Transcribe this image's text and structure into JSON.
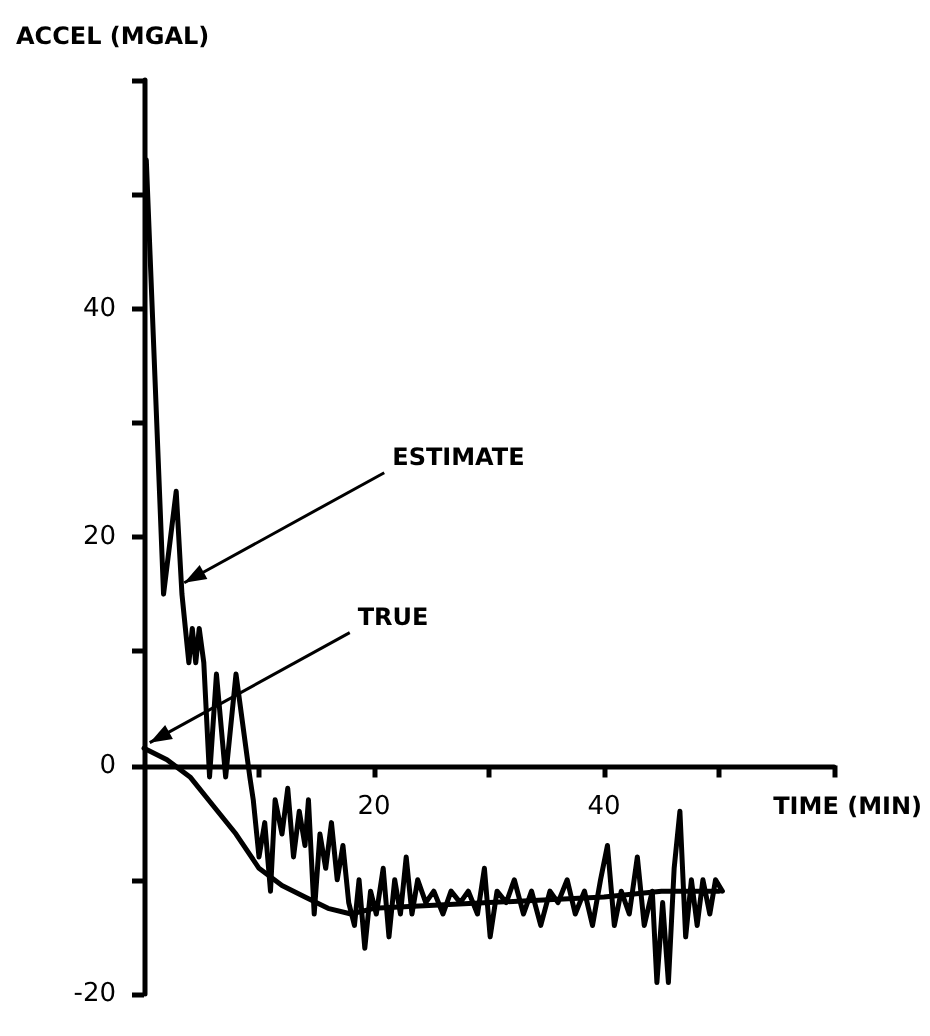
{
  "chart_data": {
    "type": "line",
    "xlabel": "TIME (MIN)",
    "ylabel": "ACCEL (MGAL)",
    "xlim": [
      0,
      60
    ],
    "xticks": [
      {
        "value": 10,
        "label": null
      },
      20,
      {
        "value": 30,
        "label": null
      },
      40,
      {
        "value": 50,
        "label": null
      },
      {
        "value": 60,
        "label": null
      }
    ],
    "ylim": [
      -20,
      60
    ],
    "yticks": [
      -20,
      {
        "value": -10,
        "label": null
      },
      0,
      {
        "value": 10,
        "label": null
      },
      20,
      {
        "value": 30,
        "label": null
      },
      40,
      {
        "value": 50,
        "label": null
      },
      {
        "value": 60,
        "label": null
      }
    ],
    "marker": "none",
    "line_style": "solid",
    "annotations": [
      {
        "text": "ESTIMATE",
        "x": 3.5,
        "y": 16
      },
      {
        "text": "TRUE",
        "x": 0.5,
        "y": 2
      }
    ],
    "series": [
      {
        "color": "#000000",
        "x": [
          0.2,
          1.7,
          2.8,
          3.3,
          3.6,
          3.9,
          4.2,
          4.5,
          4.8,
          5.2,
          5.7,
          6.3,
          7.1,
          8,
          9.2,
          9.5,
          10,
          10.5,
          11,
          11.4,
          12,
          12.5,
          13,
          13.5,
          14,
          14.3,
          14.8,
          15.3,
          15.8,
          16.3,
          16.8,
          17.3,
          17.8,
          18.3,
          18.7,
          19.2,
          19.7,
          20.2,
          20.8,
          21.3,
          21.8,
          22.3,
          22.8,
          23.3,
          23.8,
          24.5,
          25.2,
          26,
          26.7,
          27.5,
          28.2,
          29,
          29.6,
          30.1,
          30.7,
          31.5,
          32.2,
          33,
          33.7,
          34.5,
          35.3,
          36,
          36.8,
          37.5,
          38.3,
          39,
          39.7,
          40.3,
          40.9,
          41.5,
          42.2,
          42.9,
          43.5,
          44.2,
          44.6,
          45.1,
          45.6,
          46.1,
          46.6,
          47.1,
          47.6,
          48.1,
          48.6,
          49.2,
          49.7,
          50.3
        ],
        "values": [
          53,
          15,
          24,
          15,
          12,
          9,
          12,
          9,
          12,
          9,
          -1,
          8,
          -1,
          8,
          -1,
          -3,
          -8,
          -5,
          -11,
          -3,
          -6,
          -2,
          -8,
          -4,
          -7,
          -3,
          -13,
          -6,
          -9,
          -5,
          -10,
          -7,
          -12,
          -14,
          -10,
          -16,
          -11,
          -13,
          -9,
          -15,
          -10,
          -13,
          -8,
          -13,
          -10,
          -12,
          -11,
          -13,
          -11,
          -12,
          -11,
          -13,
          -9,
          -15,
          -11,
          -12,
          -10,
          -13,
          -11,
          -14,
          -11,
          -12,
          -10,
          -13,
          -11,
          -14,
          -10,
          -7,
          -14,
          -11,
          -13,
          -8,
          -14,
          -11,
          -19,
          -12,
          -19,
          -9,
          -4,
          -15,
          -10,
          -14,
          -10,
          -13,
          -10,
          -11
        ]
      },
      {
        "color": "#000000",
        "x": [
          0,
          2,
          4,
          6,
          8,
          10,
          12,
          14,
          16,
          18,
          20,
          30,
          40,
          45,
          50
        ],
        "values": [
          1.5,
          0.5,
          -1,
          -3.5,
          -6,
          -9,
          -10.5,
          -11.5,
          -12.5,
          -13,
          -12.5,
          -12,
          -11.5,
          -11,
          -11
        ]
      }
    ]
  }
}
